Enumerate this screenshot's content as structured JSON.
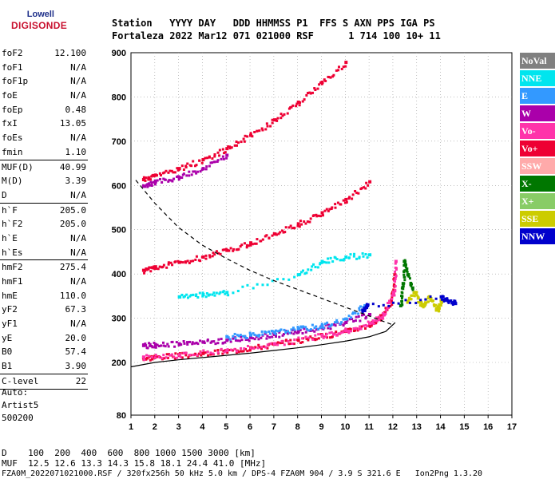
{
  "logo": {
    "line1": "Lowell",
    "line2": "DIGISONDE"
  },
  "header": {
    "line1": "Station   YYYY DAY   DDD HHMMSS P1  FFS S AXN PPS IGA PS",
    "line2": "Fortaleza 2022 Mar12 071 021000 RSF      1 714 100 10+ 11"
  },
  "params": {
    "g1": [
      {
        "k": "foF2",
        "v": "12.100"
      },
      {
        "k": "foF1",
        "v": "N/A"
      },
      {
        "k": "foF1p",
        "v": "N/A"
      },
      {
        "k": "foE",
        "v": "N/A"
      },
      {
        "k": "foEp",
        "v": "0.48"
      },
      {
        "k": "fxI",
        "v": "13.05"
      },
      {
        "k": "foEs",
        "v": "N/A"
      },
      {
        "k": "fmin",
        "v": "1.10"
      }
    ],
    "g2": [
      {
        "k": "MUF(D)",
        "v": "40.99"
      },
      {
        "k": "M(D)",
        "v": "3.39"
      },
      {
        "k": "D",
        "v": "N/A"
      }
    ],
    "g3": [
      {
        "k": "h`F",
        "v": "205.0"
      },
      {
        "k": "h`F2",
        "v": "205.0"
      },
      {
        "k": "h`E",
        "v": "N/A"
      },
      {
        "k": "h`Es",
        "v": "N/A"
      }
    ],
    "g4": [
      {
        "k": "hmF2",
        "v": "275.4"
      },
      {
        "k": "hmF1",
        "v": "N/A"
      },
      {
        "k": "hmE",
        "v": "110.0"
      },
      {
        "k": "yF2",
        "v": "67.3"
      },
      {
        "k": "yF1",
        "v": "N/A"
      },
      {
        "k": "yE",
        "v": "20.0"
      },
      {
        "k": "B0",
        "v": "57.4"
      },
      {
        "k": "B1",
        "v": "3.90"
      }
    ],
    "g5": [
      {
        "k": "C-level",
        "v": "22"
      }
    ]
  },
  "auto": {
    "l1": "Auto:",
    "l2": "Artist5",
    "l3": "500200"
  },
  "legend": [
    {
      "label": "NoVal",
      "color": "#808080"
    },
    {
      "label": "NNE",
      "color": "#00e5ee"
    },
    {
      "label": "E",
      "color": "#3399ff"
    },
    {
      "label": "W",
      "color": "#aa00aa"
    },
    {
      "label": "Vo-",
      "color": "#ff33aa"
    },
    {
      "label": "Vo+",
      "color": "#ee0033"
    },
    {
      "label": "SSW",
      "color": "#ffaaaa"
    },
    {
      "label": "X-",
      "color": "#007700"
    },
    {
      "label": "X+",
      "color": "#88cc66"
    },
    {
      "label": "SSE",
      "color": "#cccc00"
    },
    {
      "label": "NNW",
      "color": "#0000cc"
    }
  ],
  "footer": {
    "l1": "D    100  200  400  600  800 1000 1500 3000 [km]",
    "l2": "MUF  12.5 12.6 13.3 14.3 15.8 18.1 24.4 41.0 [MHz]",
    "l3": "FZA0M_2022071021000.RSF / 320fx256h 50 kHz 5.0 km / DPS-4 FZA0M 904 / 3.9 S 321.6 E   Ion2Png 1.3.20"
  },
  "chart_data": {
    "type": "scatter",
    "title": "",
    "xlabel": "",
    "ylabel": "",
    "xlim": [
      1,
      17
    ],
    "ylim": [
      80,
      900
    ],
    "x_ticks": [
      1,
      2,
      3,
      4,
      5,
      6,
      7,
      8,
      9,
      10,
      11,
      12,
      13,
      14,
      15,
      16,
      17
    ],
    "y_ticks": [
      80,
      200,
      300,
      400,
      500,
      600,
      700,
      800,
      900
    ],
    "grid": true,
    "grid_style": "dotted",
    "traces": [
      {
        "name": "Vo+",
        "color": "#ee0033",
        "points": [
          [
            1.5,
            212
          ],
          [
            2,
            215
          ],
          [
            3,
            218
          ],
          [
            4,
            222
          ],
          [
            5,
            228
          ],
          [
            6,
            235
          ],
          [
            7,
            243
          ],
          [
            8,
            252
          ],
          [
            9,
            262
          ],
          [
            10,
            272
          ],
          [
            11,
            288
          ],
          [
            11.5,
            305
          ],
          [
            11.9,
            340
          ],
          [
            12.05,
            400
          ]
        ]
      },
      {
        "name": "Vo-",
        "color": "#ff33aa",
        "points": [
          [
            1.5,
            214
          ],
          [
            3,
            219
          ],
          [
            5,
            229
          ],
          [
            7,
            244
          ],
          [
            9,
            263
          ],
          [
            10,
            273
          ],
          [
            11,
            290
          ],
          [
            11.6,
            310
          ],
          [
            12.0,
            360
          ],
          [
            12.1,
            430
          ]
        ]
      },
      {
        "name": "X-",
        "color": "#007700",
        "points": [
          [
            12.3,
            330
          ],
          [
            12.4,
            380
          ],
          [
            12.45,
            430
          ],
          [
            12.6,
            400
          ],
          [
            12.8,
            370
          ]
        ]
      },
      {
        "name": "W",
        "color": "#aa00aa",
        "points": [
          [
            1.5,
            240
          ],
          [
            2,
            242
          ],
          [
            3,
            244
          ],
          [
            4,
            248
          ],
          [
            5,
            252
          ],
          [
            6,
            258
          ],
          [
            7,
            265
          ],
          [
            8,
            272
          ],
          [
            9,
            280
          ],
          [
            10,
            292
          ],
          [
            11,
            310
          ]
        ]
      },
      {
        "name": "E",
        "color": "#3399ff",
        "points": [
          [
            5,
            260
          ],
          [
            6,
            264
          ],
          [
            7,
            270
          ],
          [
            8,
            278
          ],
          [
            9,
            285
          ],
          [
            10,
            300
          ],
          [
            10.8,
            330
          ]
        ]
      },
      {
        "name": "NNE",
        "color": "#00e5ee",
        "points": [
          [
            3,
            350
          ],
          [
            4,
            355
          ],
          [
            5,
            360
          ],
          [
            8,
            400
          ],
          [
            9,
            430
          ],
          [
            10,
            440
          ],
          [
            11,
            445
          ]
        ]
      },
      {
        "name": "SSE",
        "color": "#cccc00",
        "points": [
          [
            12.6,
            340
          ],
          [
            12.9,
            360
          ],
          [
            13.2,
            330
          ],
          [
            13.5,
            350
          ],
          [
            13.8,
            320
          ],
          [
            14,
            340
          ]
        ]
      },
      {
        "name": "NNW",
        "color": "#0000cc",
        "points": [
          [
            10.7,
            320
          ],
          [
            10.9,
            330
          ],
          [
            14,
            350
          ],
          [
            14.3,
            340
          ],
          [
            14.6,
            335
          ]
        ]
      },
      {
        "name": "Vo+ (2F)",
        "color": "#ee0033",
        "points": [
          [
            1.5,
            410
          ],
          [
            2,
            418
          ],
          [
            3,
            428
          ],
          [
            4,
            440
          ],
          [
            5,
            455
          ],
          [
            6,
            472
          ],
          [
            7,
            492
          ],
          [
            8,
            515
          ],
          [
            9,
            540
          ],
          [
            10,
            570
          ],
          [
            11,
            610
          ]
        ]
      },
      {
        "name": "Vo+ (3F)",
        "color": "#ee0033",
        "points": [
          [
            1.5,
            615
          ],
          [
            2,
            625
          ],
          [
            3,
            640
          ],
          [
            4,
            660
          ],
          [
            5,
            685
          ],
          [
            6,
            715
          ],
          [
            7,
            750
          ],
          [
            8,
            790
          ],
          [
            9,
            835
          ],
          [
            10,
            880
          ]
        ]
      },
      {
        "name": "W (3F)",
        "color": "#aa00aa",
        "points": [
          [
            1.5,
            600
          ],
          [
            2,
            610
          ],
          [
            3,
            620
          ],
          [
            4,
            640
          ],
          [
            5,
            670
          ]
        ]
      }
    ],
    "curves": [
      {
        "name": "profile",
        "style": "solid",
        "points": [
          [
            1,
            190
          ],
          [
            2,
            200
          ],
          [
            3,
            206
          ],
          [
            4,
            211
          ],
          [
            5,
            216
          ],
          [
            6,
            221
          ],
          [
            7,
            227
          ],
          [
            8,
            233
          ],
          [
            9,
            240
          ],
          [
            10,
            248
          ],
          [
            11,
            258
          ],
          [
            11.7,
            270
          ],
          [
            12.1,
            290
          ]
        ]
      },
      {
        "name": "MUF",
        "style": "dashed",
        "points": [
          [
            1.2,
            612
          ],
          [
            2,
            560
          ],
          [
            3,
            505
          ],
          [
            4,
            465
          ],
          [
            5,
            435
          ],
          [
            6,
            408
          ],
          [
            7,
            385
          ],
          [
            8,
            365
          ],
          [
            9,
            345
          ],
          [
            10,
            325
          ],
          [
            11,
            305
          ],
          [
            12,
            285
          ]
        ]
      }
    ]
  }
}
